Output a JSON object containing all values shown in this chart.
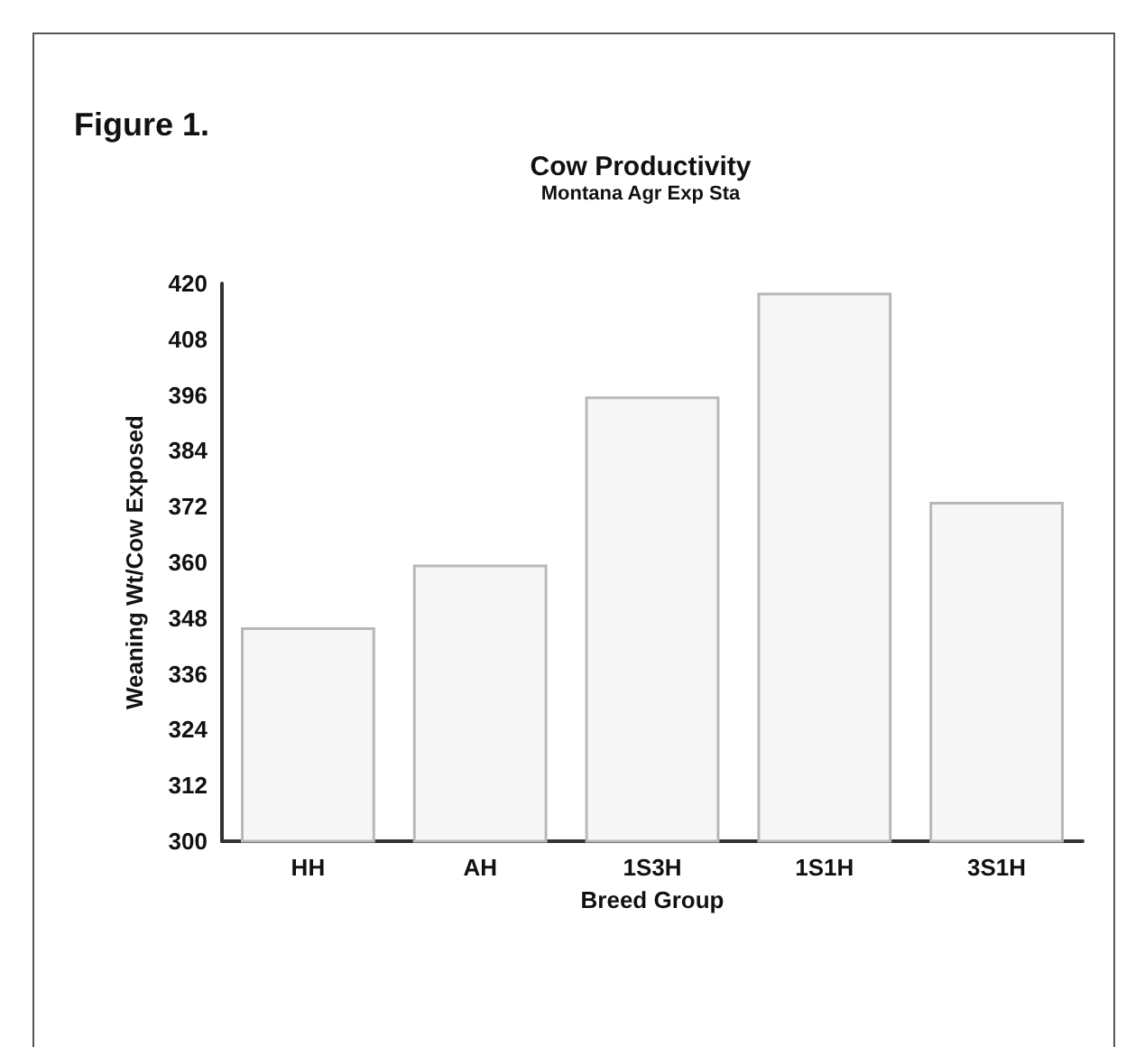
{
  "chart_data": {
    "type": "bar",
    "title": "Cow Productivity",
    "subtitle": "Montana Agr Exp Sta",
    "annotations": [
      "Figure 1."
    ],
    "xlabel": "Breed Group",
    "ylabel": "Weaning Wt/Cow Exposed",
    "categories": [
      "HH",
      "AH",
      "1S3H",
      "1S1H",
      "3S1H"
    ],
    "values": [
      346,
      359.5,
      395.7,
      418,
      373
    ],
    "color": "#f7f7f7",
    "ylim": [
      300,
      420
    ],
    "yticks": [
      300,
      312,
      324,
      336,
      348,
      360,
      372,
      384,
      396,
      408,
      420
    ],
    "grid": false
  }
}
